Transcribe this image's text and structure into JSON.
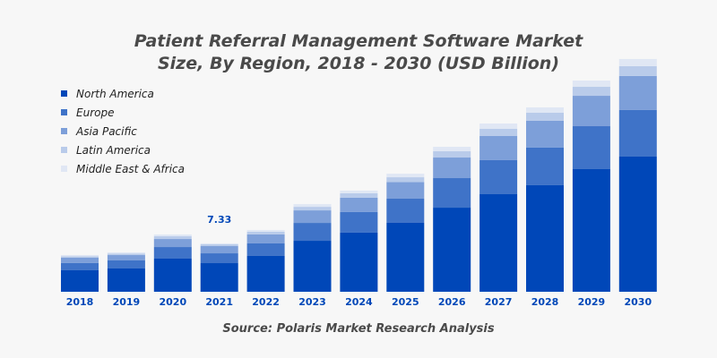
{
  "chart_data": {
    "type": "stacked-bar",
    "title": "Patient Referral Management Software Market Size, By Region, 2018 - 2030 (USD Billion)",
    "title_lines": [
      "Patient Referral Management Software Market",
      "Size, By Region, 2018 - 2030 (USD Billion)"
    ],
    "source": "Source: Polaris Market Research Analysis",
    "categories": [
      "2018",
      "2019",
      "2020",
      "2021",
      "2022",
      "2023",
      "2024",
      "2025",
      "2026",
      "2027",
      "2028",
      "2029",
      "2030"
    ],
    "series": [
      {
        "name": "North America",
        "color": "#0047b8",
        "values": [
          3.26,
          3.53,
          5.02,
          4.34,
          5.43,
          7.73,
          8.96,
          10.45,
          12.75,
          14.79,
          16.15,
          18.59,
          20.49
        ]
      },
      {
        "name": "Europe",
        "color": "#3f73c8",
        "values": [
          1.09,
          1.22,
          1.76,
          1.49,
          1.9,
          2.71,
          3.12,
          3.66,
          4.48,
          5.16,
          5.7,
          6.51,
          7.06
        ]
      },
      {
        "name": "Asia Pacific",
        "color": "#7d9fd9",
        "values": [
          0.81,
          0.81,
          1.22,
          1.09,
          1.36,
          1.9,
          2.17,
          2.53,
          3.12,
          3.66,
          4.07,
          4.61,
          5.16
        ]
      },
      {
        "name": "Latin America",
        "color": "#b9cbea",
        "values": [
          0.23,
          0.23,
          0.41,
          0.27,
          0.41,
          0.54,
          0.68,
          0.72,
          0.95,
          1.09,
          1.22,
          1.36,
          1.49
        ]
      },
      {
        "name": "Middle East & Africa",
        "color": "#e0e7f4",
        "values": [
          0.18,
          0.18,
          0.27,
          0.14,
          0.27,
          0.41,
          0.41,
          0.54,
          0.68,
          0.81,
          0.81,
          0.95,
          1.09
        ]
      }
    ],
    "annotations": [
      {
        "category": "2021",
        "text": "7.33"
      }
    ],
    "ylim": [
      0,
      35
    ],
    "grid": false,
    "legend": "top-left",
    "tick_label_color": "#0047b8"
  }
}
